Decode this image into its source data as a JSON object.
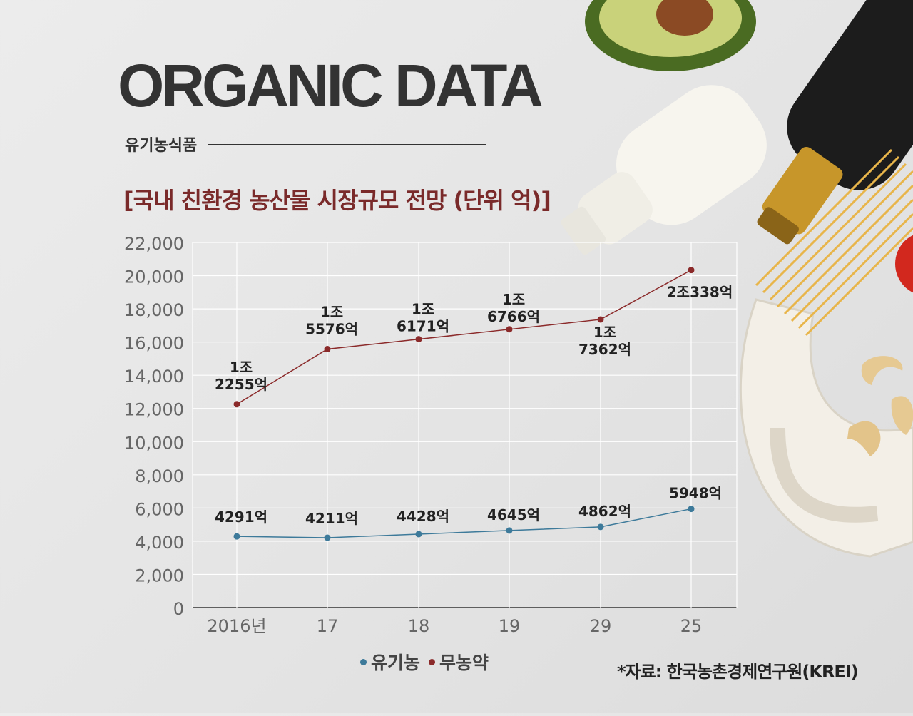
{
  "header": {
    "headline": "ORGANIC DATA",
    "subtitle": "유기농식품",
    "chart_title": "[국내 친환경 농산물 시장규모 전망 (단위 억)]"
  },
  "source": "*자료:  한국농촌경제연구원(KREI)",
  "colors": {
    "organic": "#3d7a9a",
    "pesticide_free": "#8b2a2a",
    "title": "#7a2a2a"
  },
  "chart_data": {
    "type": "line",
    "categories": [
      "2016년",
      "17",
      "18",
      "19",
      "29",
      "25"
    ],
    "ylim": [
      0,
      22000
    ],
    "yticks": [
      "0",
      "2,000",
      "4,000",
      "6,000",
      "8,000",
      "10,000",
      "12,000",
      "14,000",
      "16,000",
      "18,000",
      "20,000",
      "22,000"
    ],
    "grid": true,
    "legend_position": "bottom",
    "series": [
      {
        "name": "유기농",
        "values": [
          4291,
          4211,
          4428,
          4645,
          4862,
          5948
        ],
        "labels": [
          [
            "4291억"
          ],
          [
            "4211억"
          ],
          [
            "4428억"
          ],
          [
            "4645억"
          ],
          [
            "4862억"
          ],
          [
            "5948억"
          ]
        ]
      },
      {
        "name": "무농약",
        "values": [
          12255,
          15576,
          16171,
          16766,
          17362,
          20338
        ],
        "labels": [
          [
            "1조",
            "2255억"
          ],
          [
            "1조",
            "5576억"
          ],
          [
            "1조",
            "6171억"
          ],
          [
            "1조",
            "6766억"
          ],
          [
            "1조",
            "7362억"
          ],
          [
            "2조338억"
          ]
        ]
      }
    ]
  }
}
